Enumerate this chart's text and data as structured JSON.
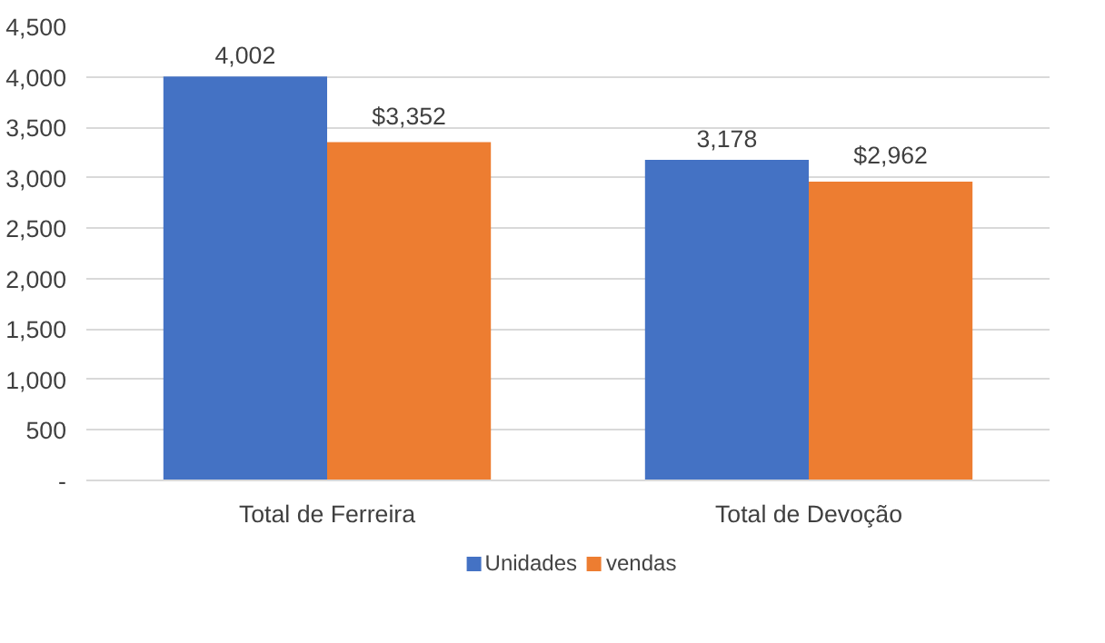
{
  "chart_data": {
    "type": "bar",
    "categories": [
      "Total de Ferreira",
      "Total de Devoção"
    ],
    "series": [
      {
        "name": "Unidades",
        "color": "#4472c4",
        "values": [
          4002,
          3178
        ],
        "value_labels": [
          "4,002",
          "3,178"
        ]
      },
      {
        "name": "vendas",
        "color": "#ed7d31",
        "values": [
          3352,
          2962
        ],
        "value_labels": [
          "$3,352",
          "$2,962"
        ]
      }
    ],
    "ylim": [
      0,
      4500
    ],
    "yticks": [
      {
        "value": 0,
        "label": "-"
      },
      {
        "value": 500,
        "label": "500"
      },
      {
        "value": 1000,
        "label": "1,000"
      },
      {
        "value": 1500,
        "label": "1,500"
      },
      {
        "value": 2000,
        "label": "2,000"
      },
      {
        "value": 2500,
        "label": "2,500"
      },
      {
        "value": 3000,
        "label": "3,000"
      },
      {
        "value": 3500,
        "label": "3,500"
      },
      {
        "value": 4000,
        "label": "4,000"
      },
      {
        "value": 4500,
        "label": "4,500"
      }
    ],
    "grid": "y",
    "legend": "bottom"
  }
}
